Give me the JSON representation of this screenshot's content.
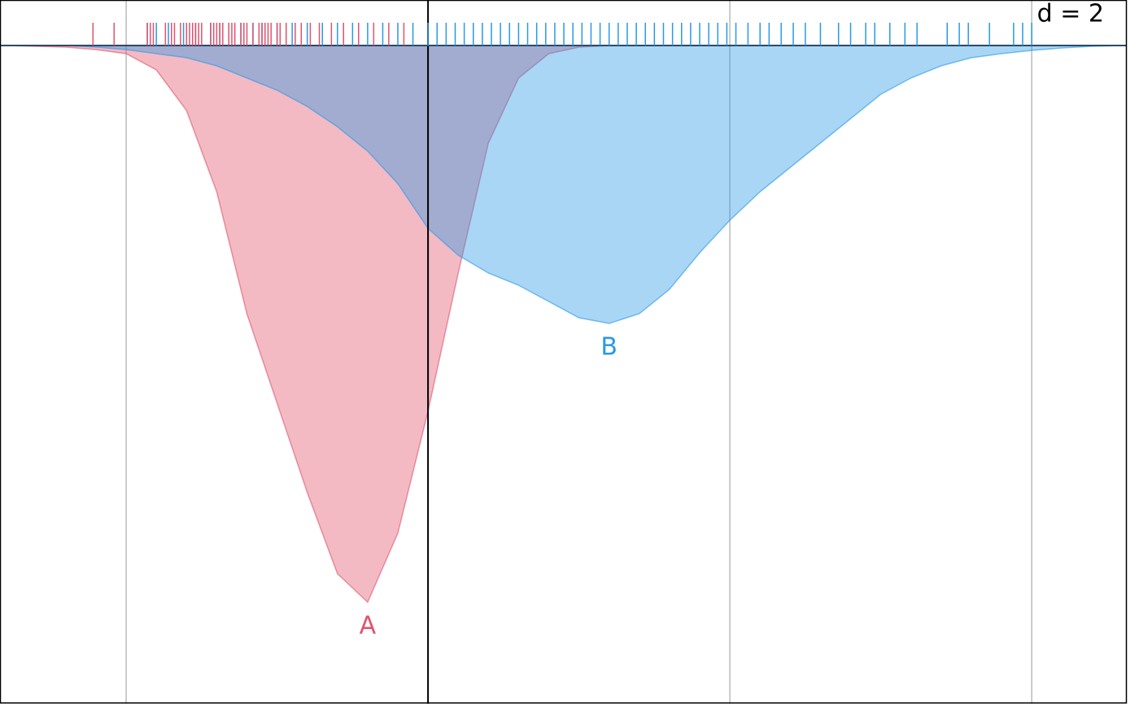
{
  "chart_data": {
    "type": "density",
    "title": "d = 2",
    "x": [
      -1.4,
      -1.3,
      -1.2,
      -1.1,
      -1.0,
      -0.9,
      -0.8,
      -0.7,
      -0.6,
      -0.5,
      -0.4,
      -0.3,
      -0.2,
      -0.1,
      0.0,
      0.1,
      0.2,
      0.3,
      0.4,
      0.5,
      0.6,
      0.7,
      0.8,
      0.9,
      1.0,
      1.1,
      1.2,
      1.3,
      1.4,
      1.5,
      1.6,
      1.7,
      1.8,
      1.9,
      2.0,
      2.1,
      2.2,
      2.3
    ],
    "series": [
      {
        "name": "A",
        "color": "#e0536c",
        "values": [
          0,
          0.01,
          0.02,
          0.05,
          0.1,
          0.3,
          0.8,
          1.8,
          3.3,
          4.4,
          5.5,
          6.5,
          6.85,
          6.0,
          4.5,
          2.8,
          1.2,
          0.4,
          0.1,
          0.02,
          0,
          0,
          0,
          0,
          0,
          0,
          0,
          0,
          0,
          0,
          0,
          0,
          0,
          0,
          0,
          0,
          0,
          0
        ],
        "rug": [
          -1.11,
          -1.04,
          -0.93,
          -0.92,
          -0.91,
          -0.87,
          -0.85,
          -0.84,
          -0.82,
          -0.8,
          -0.79,
          -0.78,
          -0.77,
          -0.76,
          -0.75,
          -0.72,
          -0.71,
          -0.7,
          -0.69,
          -0.68,
          -0.66,
          -0.65,
          -0.64,
          -0.62,
          -0.61,
          -0.6,
          -0.58,
          -0.56,
          -0.55,
          -0.54,
          -0.53,
          -0.52,
          -0.5,
          -0.49,
          -0.47,
          -0.44,
          -0.42,
          -0.39,
          -0.36,
          -0.32,
          -0.28,
          -0.23,
          -0.18,
          -0.13,
          -0.08
        ]
      },
      {
        "name": "B",
        "color": "#2899e6",
        "values": [
          0,
          0,
          0,
          0.02,
          0.05,
          0.1,
          0.15,
          0.25,
          0.4,
          0.55,
          0.75,
          1.0,
          1.3,
          1.7,
          2.25,
          2.58,
          2.8,
          2.95,
          3.15,
          3.35,
          3.42,
          3.3,
          3.0,
          2.55,
          2.15,
          1.8,
          1.5,
          1.2,
          0.9,
          0.6,
          0.4,
          0.25,
          0.15,
          0.1,
          0.06,
          0.03,
          0.01,
          0
        ],
        "rug": [
          -0.93,
          -0.9,
          -0.86,
          -0.81,
          -0.77,
          -0.72,
          -0.69,
          -0.66,
          -0.62,
          -0.58,
          -0.55,
          -0.5,
          -0.45,
          -0.4,
          -0.35,
          -0.3,
          -0.25,
          -0.2,
          -0.15,
          -0.1,
          -0.05,
          0,
          0.03,
          0.06,
          0.09,
          0.12,
          0.15,
          0.18,
          0.21,
          0.24,
          0.27,
          0.3,
          0.33,
          0.36,
          0.39,
          0.42,
          0.45,
          0.48,
          0.51,
          0.54,
          0.57,
          0.6,
          0.63,
          0.66,
          0.69,
          0.72,
          0.75,
          0.78,
          0.81,
          0.84,
          0.87,
          0.9,
          0.93,
          0.96,
          0.99,
          1.02,
          1.06,
          1.1,
          1.13,
          1.17,
          1.21,
          1.25,
          1.3,
          1.36,
          1.4,
          1.45,
          1.48,
          1.53,
          1.58,
          1.62,
          1.72,
          1.76,
          1.79,
          1.86,
          1.94,
          1.97,
          2.0
        ]
      }
    ],
    "xlim": [
      -1.418,
      2.315
    ],
    "ylim": [
      0,
      8.1
    ],
    "xticks": [
      -1,
      0,
      1,
      2
    ],
    "vline": 0,
    "grid": true,
    "inverted": true
  }
}
